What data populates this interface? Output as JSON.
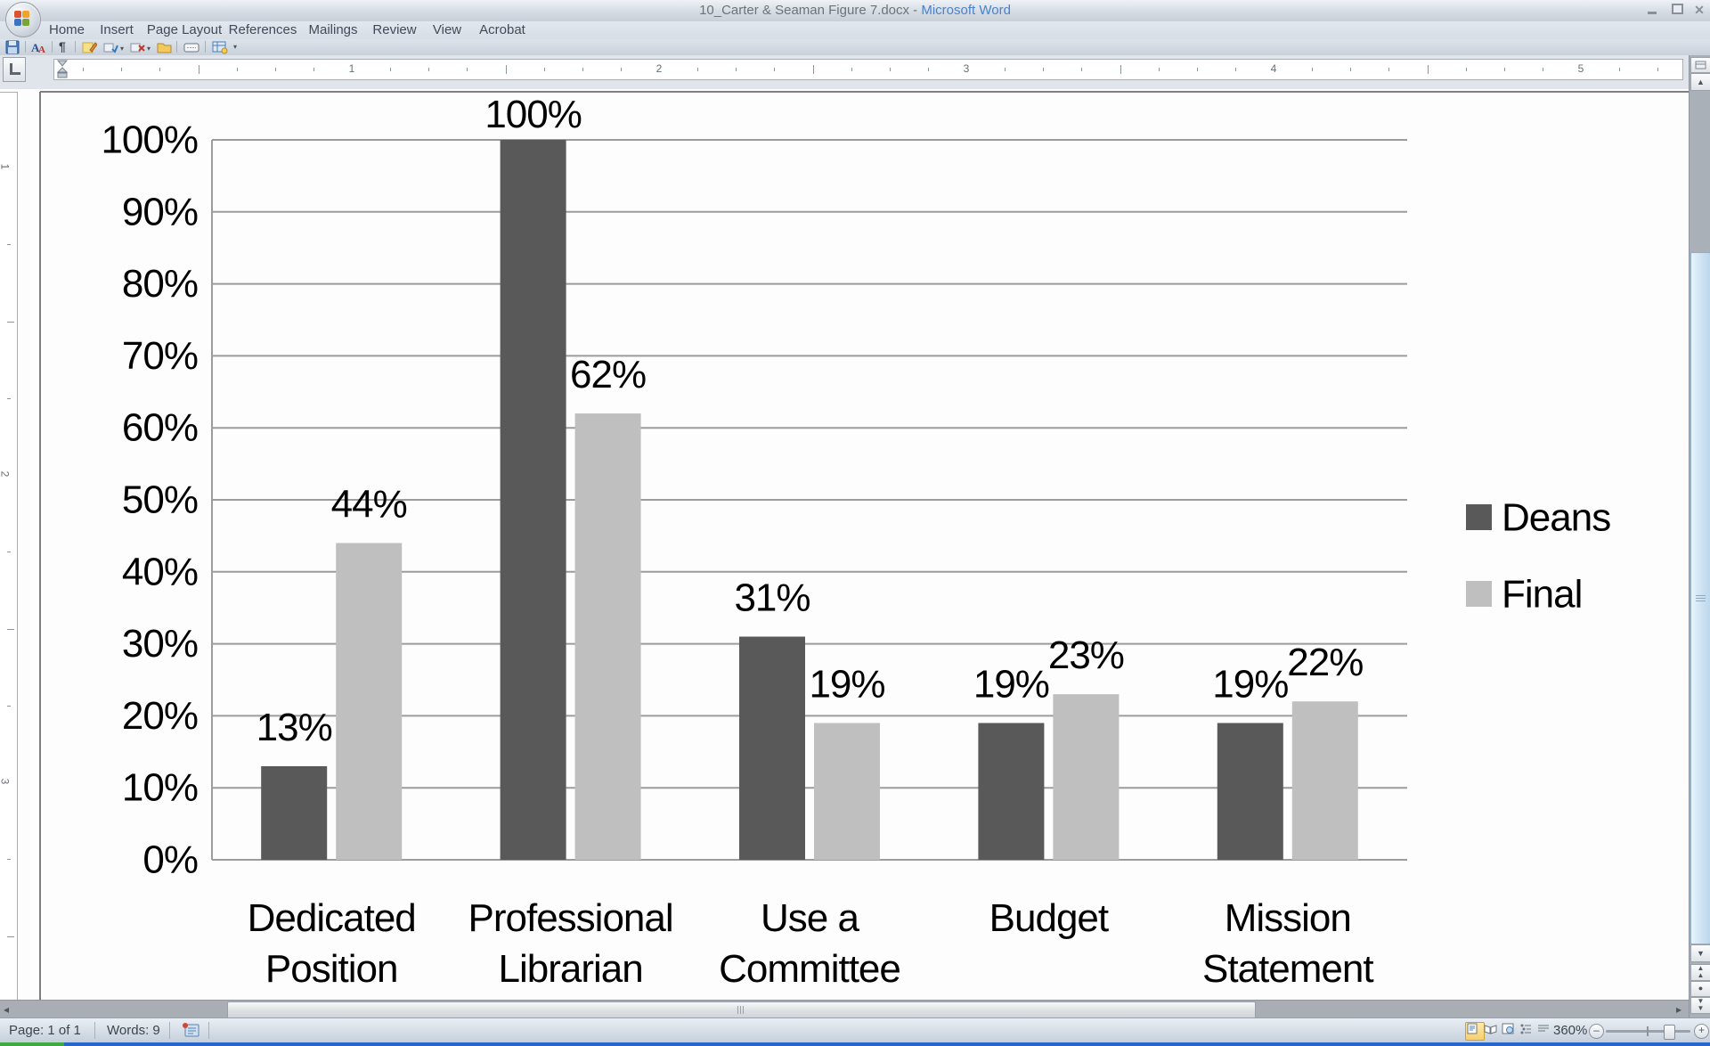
{
  "window": {
    "title_doc": "10_Carter & Seaman Figure 7.docx - ",
    "title_app": "Microsoft Word",
    "controls": [
      "minimize",
      "restore",
      "close"
    ]
  },
  "ribbon": {
    "tabs": [
      "Home",
      "Insert",
      "Page Layout",
      "References",
      "Mailings",
      "Review",
      "View",
      "Acrobat"
    ]
  },
  "qat": {
    "icons": [
      "save",
      "font",
      "show-paragraph-marks",
      "new-comment",
      "accept-markup",
      "reject-markup",
      "folder",
      "form-field",
      "table-properties",
      "customize-qat"
    ]
  },
  "ruler": {
    "h_numbers": [
      "1",
      "2",
      "3",
      "4",
      "5"
    ],
    "v_numbers": [
      "1",
      "2",
      "3"
    ]
  },
  "chart_data": {
    "type": "bar",
    "title": "",
    "categories": [
      "Dedicated Position",
      "Professional Librarian",
      "Use a Committee",
      "Budget",
      "Mission Statement"
    ],
    "series": [
      {
        "name": "Deans",
        "color": "#595959",
        "values": [
          13,
          100,
          31,
          19,
          19
        ]
      },
      {
        "name": "Final",
        "color": "#bfbfbf",
        "values": [
          44,
          62,
          19,
          23,
          22
        ]
      }
    ],
    "data_labels": [
      "13%",
      "100%",
      "31%",
      "19%",
      "19%",
      "44%",
      "62%",
      "19%",
      "23%",
      "22%"
    ],
    "ylim": [
      0,
      100
    ],
    "ytick_step": 10,
    "ytick_labels": [
      "0%",
      "10%",
      "20%",
      "30%",
      "40%",
      "50%",
      "60%",
      "70%",
      "80%",
      "90%",
      "100%"
    ],
    "tick_format": "percent",
    "grid": true,
    "legend_position": "right",
    "gridline_color": "#9c9c9c",
    "text_color": "#000000"
  },
  "status": {
    "page": "Page: 1 of 1",
    "words": "Words: 9",
    "proofing_icon": "proofing-status",
    "view_buttons": [
      "print-layout",
      "full-screen-reading",
      "web-layout",
      "outline",
      "draft"
    ],
    "active_view": "print-layout",
    "zoom": "360%"
  }
}
